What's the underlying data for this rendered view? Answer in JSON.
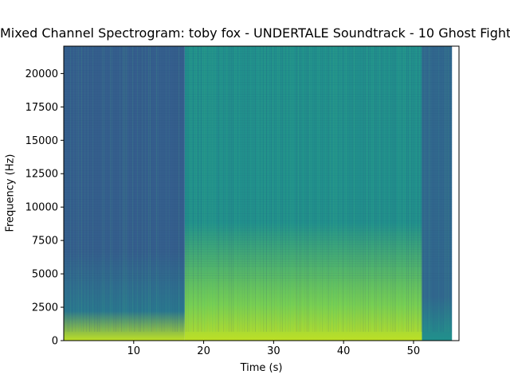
{
  "chart_data": {
    "type": "heatmap",
    "title": "Mixed Channel Spectrogram: toby fox - UNDERTALE Soundtrack - 10 Ghost Fight",
    "xlabel": "Time (s)",
    "ylabel": "Frequency (Hz)",
    "xlim": [
      0,
      56.5
    ],
    "ylim": [
      0,
      22050
    ],
    "data_extent_x": [
      0,
      55.5
    ],
    "x_ticks": [
      10,
      20,
      30,
      40,
      50
    ],
    "y_ticks": [
      0,
      2500,
      5000,
      7500,
      10000,
      12500,
      15000,
      17500,
      20000
    ],
    "colormap": "viridis",
    "sections": [
      {
        "start": 0,
        "end": 17.3,
        "level": "low"
      },
      {
        "start": 17.3,
        "end": 51.2,
        "level": "high"
      },
      {
        "start": 51.2,
        "end": 55.5,
        "level": "fade"
      }
    ]
  },
  "colors": {
    "low_top": "#355f8d",
    "low_bottom": "#2a788e",
    "high_top": "#21918c",
    "high_bottom": "#7ad151",
    "base_band": "#bddf26",
    "fade": "#31688e"
  }
}
